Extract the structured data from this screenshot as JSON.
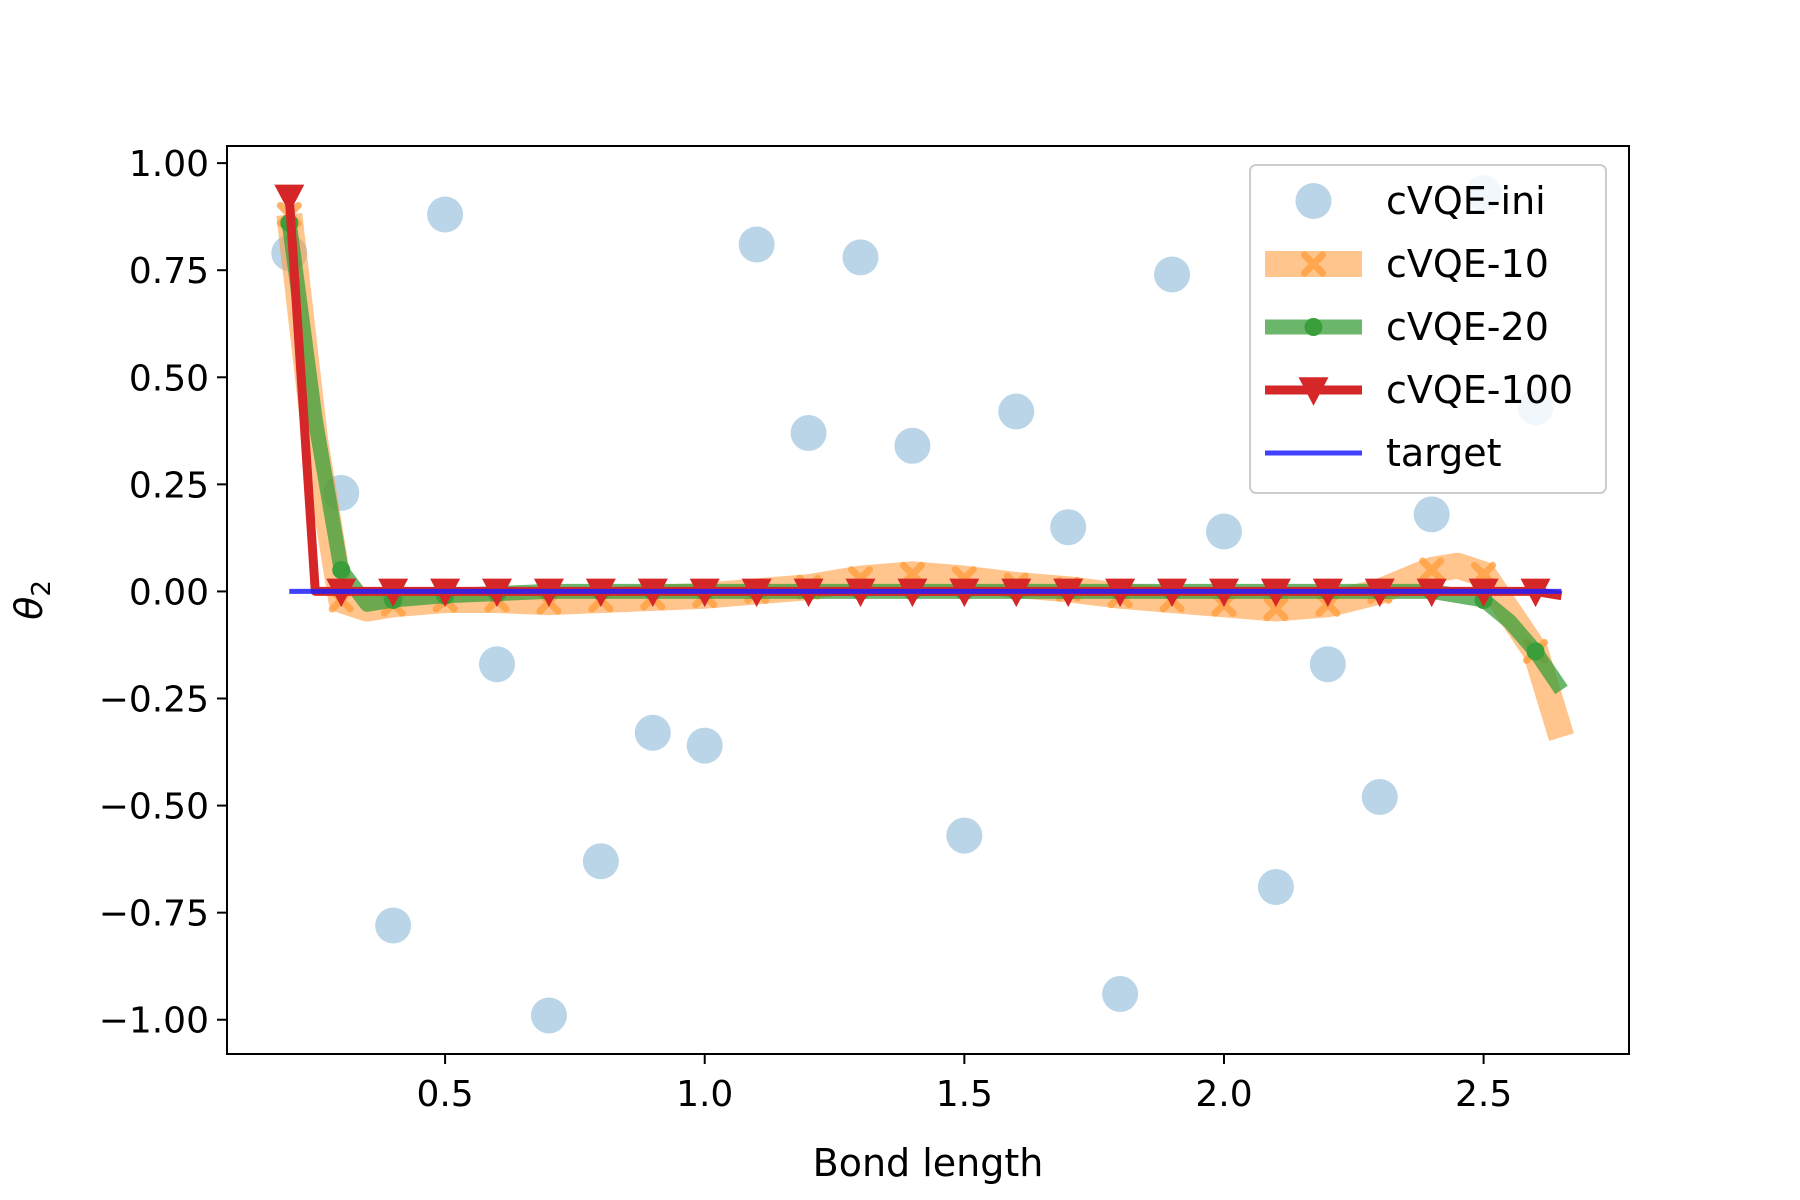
{
  "chart_data": {
    "type": "line",
    "xlabel": "Bond length",
    "ylabel": "θ2",
    "xlim": [
      0.08,
      2.78
    ],
    "ylim": [
      -1.08,
      1.04
    ],
    "xticks": [
      0.5,
      1.0,
      1.5,
      2.0,
      2.5
    ],
    "xtick_labels": [
      "0.5",
      "1.0",
      "1.5",
      "2.0",
      "2.5"
    ],
    "yticks": [
      1.0,
      0.75,
      0.5,
      0.25,
      0.0,
      -0.25,
      -0.5,
      -0.75,
      -1.0
    ],
    "ytick_labels": [
      "1.00",
      "0.75",
      "0.50",
      "0.25",
      "0.00",
      "−0.25",
      "−0.50",
      "−0.75",
      "−1.00"
    ],
    "grid": false,
    "legend_position": "top-right",
    "series": [
      {
        "name": "cVQE-ini",
        "kind": "scatter",
        "color": "#a9c9e2",
        "x": [
          0.2,
          0.3,
          0.4,
          0.5,
          0.6,
          0.7,
          0.8,
          0.9,
          1.0,
          1.1,
          1.2,
          1.3,
          1.4,
          1.5,
          1.6,
          1.7,
          1.8,
          1.9,
          2.0,
          2.1,
          2.2,
          2.3,
          2.4,
          2.5,
          2.6
        ],
        "y": [
          0.79,
          0.23,
          -0.78,
          0.88,
          -0.17,
          -0.99,
          -0.63,
          -0.33,
          -0.36,
          0.81,
          0.37,
          0.78,
          0.34,
          -0.57,
          0.42,
          0.15,
          -0.94,
          0.74,
          0.14,
          -0.69,
          -0.17,
          -0.48,
          0.18,
          0.93,
          0.43
        ]
      },
      {
        "name": "cVQE-10",
        "kind": "line",
        "marker": "x",
        "color": "#ff9f40",
        "x": [
          0.2,
          0.25,
          0.3,
          0.35,
          0.4,
          0.5,
          0.6,
          0.7,
          0.8,
          0.9,
          1.0,
          1.1,
          1.2,
          1.3,
          1.4,
          1.5,
          1.6,
          1.7,
          1.8,
          1.9,
          2.0,
          2.1,
          2.2,
          2.3,
          2.4,
          2.45,
          2.5,
          2.6,
          2.65
        ],
        "y": [
          0.88,
          0.35,
          -0.02,
          -0.04,
          -0.03,
          -0.02,
          -0.02,
          -0.025,
          -0.02,
          -0.015,
          -0.01,
          0.0,
          0.01,
          0.03,
          0.04,
          0.03,
          0.015,
          0.005,
          -0.01,
          -0.02,
          -0.03,
          -0.04,
          -0.03,
          0.0,
          0.05,
          0.06,
          0.04,
          -0.14,
          -0.34
        ],
        "marker_x": [
          0.2,
          0.3,
          0.4,
          0.5,
          0.6,
          0.7,
          0.8,
          0.9,
          1.0,
          1.1,
          1.2,
          1.3,
          1.4,
          1.5,
          1.6,
          1.7,
          1.8,
          1.9,
          2.0,
          2.1,
          2.2,
          2.3,
          2.4,
          2.5,
          2.6
        ],
        "marker_y": [
          0.88,
          -0.02,
          -0.03,
          -0.02,
          -0.02,
          -0.025,
          -0.02,
          -0.015,
          -0.01,
          0.0,
          0.01,
          0.03,
          0.04,
          0.03,
          0.015,
          0.005,
          -0.01,
          -0.02,
          -0.03,
          -0.04,
          -0.03,
          0.0,
          0.05,
          0.04,
          -0.14
        ]
      },
      {
        "name": "cVQE-20",
        "kind": "line",
        "marker": "o",
        "color": "#3a9e3a",
        "x": [
          0.2,
          0.25,
          0.3,
          0.35,
          0.4,
          0.5,
          0.6,
          0.7,
          0.8,
          0.9,
          1.0,
          1.1,
          1.2,
          1.3,
          1.4,
          1.5,
          1.6,
          1.7,
          1.8,
          1.9,
          2.0,
          2.1,
          2.2,
          2.3,
          2.4,
          2.5,
          2.55,
          2.6,
          2.65
        ],
        "y": [
          0.86,
          0.4,
          0.05,
          -0.03,
          -0.02,
          -0.01,
          -0.005,
          0.0,
          0.0,
          0.0,
          0.0,
          0.0,
          0.0,
          0.0,
          0.0,
          0.0,
          0.0,
          0.0,
          0.0,
          0.0,
          0.0,
          0.0,
          0.0,
          0.0,
          0.0,
          -0.02,
          -0.07,
          -0.14,
          -0.23
        ],
        "marker_x": [
          0.2,
          0.3,
          0.4,
          0.5,
          0.6,
          0.7,
          0.8,
          0.9,
          1.0,
          1.1,
          1.2,
          1.3,
          1.4,
          1.5,
          1.6,
          1.7,
          1.8,
          1.9,
          2.0,
          2.1,
          2.2,
          2.3,
          2.4,
          2.5,
          2.6
        ],
        "marker_y": [
          0.86,
          0.05,
          -0.02,
          -0.01,
          -0.005,
          0.0,
          0.0,
          0.0,
          0.0,
          0.0,
          0.0,
          0.0,
          0.0,
          0.0,
          0.0,
          0.0,
          0.0,
          0.0,
          0.0,
          0.0,
          0.0,
          0.0,
          0.0,
          -0.02,
          -0.14
        ]
      },
      {
        "name": "cVQE-100",
        "kind": "line",
        "marker": "v",
        "color": "#d62728",
        "x": [
          0.2,
          0.25,
          0.3,
          0.4,
          0.5,
          0.6,
          0.7,
          0.8,
          0.9,
          1.0,
          1.1,
          1.2,
          1.3,
          1.4,
          1.5,
          1.6,
          1.7,
          1.8,
          1.9,
          2.0,
          2.1,
          2.2,
          2.3,
          2.4,
          2.5,
          2.6,
          2.65
        ],
        "y": [
          0.92,
          0.0,
          0.0,
          0.0,
          0.0,
          0.0,
          0.0,
          0.0,
          0.0,
          0.0,
          0.0,
          0.0,
          0.0,
          0.0,
          0.0,
          0.0,
          0.0,
          0.0,
          0.0,
          0.0,
          0.0,
          0.0,
          0.0,
          0.0,
          0.0,
          0.0,
          -0.01
        ],
        "marker_x": [
          0.2,
          0.3,
          0.4,
          0.5,
          0.6,
          0.7,
          0.8,
          0.9,
          1.0,
          1.1,
          1.2,
          1.3,
          1.4,
          1.5,
          1.6,
          1.7,
          1.8,
          1.9,
          2.0,
          2.1,
          2.2,
          2.3,
          2.4,
          2.5,
          2.6
        ],
        "marker_y": [
          0.92,
          0.0,
          0.0,
          0.0,
          0.0,
          0.0,
          0.0,
          0.0,
          0.0,
          0.0,
          0.0,
          0.0,
          0.0,
          0.0,
          0.0,
          0.0,
          0.0,
          0.0,
          0.0,
          0.0,
          0.0,
          0.0,
          0.0,
          0.0,
          0.0
        ]
      },
      {
        "name": "target",
        "kind": "line",
        "marker": "none",
        "color": "#1f1fff",
        "x": [
          0.2,
          2.65
        ],
        "y": [
          0.0,
          0.0
        ]
      }
    ]
  }
}
